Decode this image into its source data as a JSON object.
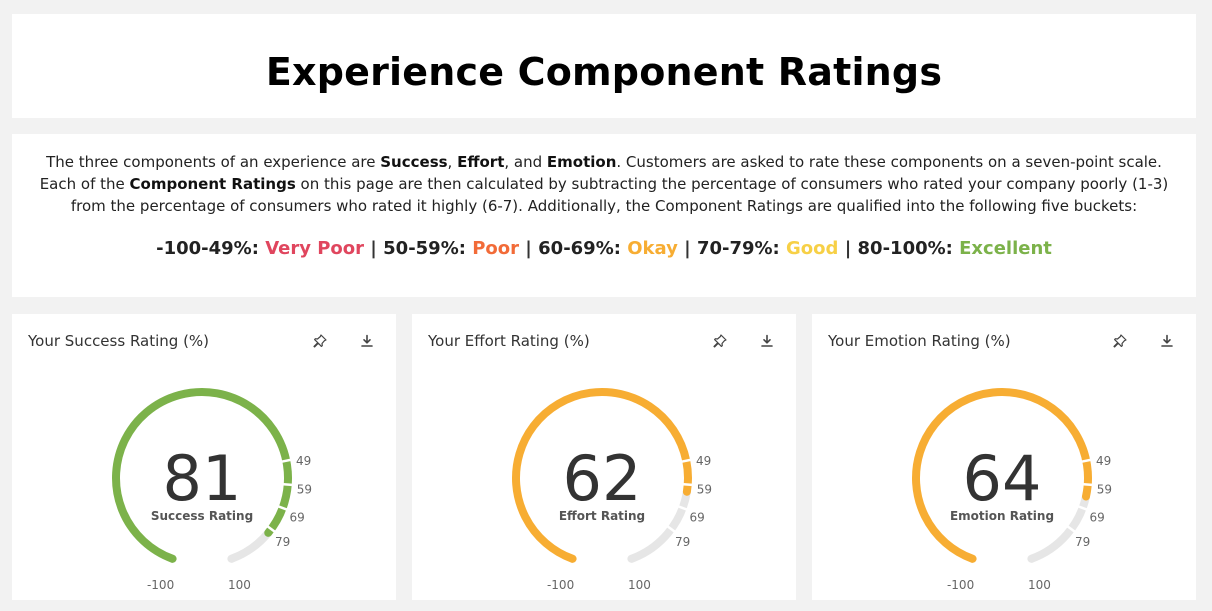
{
  "page": {
    "title": "Experience Component Ratings"
  },
  "description": {
    "part1": "The three components of an experience are ",
    "success": "Success",
    "comma1": ", ",
    "effort": "Effort",
    "and": ", and ",
    "emotion": "Emotion",
    "part2": ". Customers are asked to rate these components on a seven-point scale. Each of the ",
    "component_ratings": "Component Ratings",
    "part3": " on this page are then calculated by subtracting the percentage of consumers who rated your company poorly (1-3) from the percentage of consumers who rated it highly (6-7). Additionally, the Component Ratings are qualified into the following five buckets:"
  },
  "buckets": [
    {
      "range": "-100-49%: ",
      "label": "Very Poor",
      "color": "#e0465e"
    },
    {
      "range": "50-59%: ",
      "label": "Poor",
      "color": "#f26b38"
    },
    {
      "range": "60-69%: ",
      "label": "Okay",
      "color": "#f7ad33"
    },
    {
      "range": "70-79%: ",
      "label": "Good",
      "color": "#f7d046"
    },
    {
      "range": "80-100%: ",
      "label": "Excellent",
      "color": "#7cb24a"
    }
  ],
  "separator": " | ",
  "widgets": [
    {
      "title": "Your Success Rating (%)",
      "value": "81",
      "label": "Success Rating",
      "color": "#7cb24a",
      "fill_value": 81
    },
    {
      "title": "Your Effort Rating (%)",
      "value": "62",
      "label": "Effort Rating",
      "color": "#f7ad33",
      "fill_value": 62
    },
    {
      "title": "Your Emotion Rating (%)",
      "value": "64",
      "label": "Emotion Rating",
      "color": "#f7ad33",
      "fill_value": 64
    }
  ],
  "gauge": {
    "min": -100,
    "max": 100,
    "min_label": "-100",
    "max_label": "100",
    "ticks": [
      {
        "value": 49,
        "label": "49"
      },
      {
        "value": 59,
        "label": "59"
      },
      {
        "value": 69,
        "label": "69"
      },
      {
        "value": 79,
        "label": "79"
      }
    ],
    "track_color": "#e6e6e6"
  },
  "icons": {
    "pin": "pin-icon",
    "download": "download-icon"
  }
}
